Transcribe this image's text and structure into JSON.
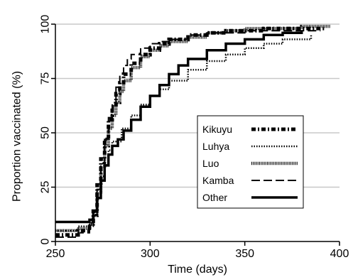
{
  "chart_data": {
    "type": "line",
    "title": "",
    "xlabel": "Time (days)",
    "ylabel": "Proportion vaccinated (%)",
    "xlim": [
      250,
      400
    ],
    "ylim": [
      0,
      100
    ],
    "xticks": [
      250,
      300,
      350,
      400
    ],
    "yticks": [
      0,
      25,
      50,
      75,
      100
    ],
    "ytick_labels": [
      "0",
      "25",
      "50",
      "75",
      "100"
    ],
    "xtick_labels": [
      "250",
      "300",
      "350",
      "400"
    ],
    "grid": "horizontal",
    "legend_position": "lower-right",
    "series": [
      {
        "name": "Kikuyu",
        "style": "dash-dot-heavy",
        "color": "#000000",
        "x": [
          250,
          262,
          268,
          270,
          272,
          274,
          276,
          278,
          280,
          282,
          284,
          286,
          290,
          295,
          300,
          305,
          310,
          320,
          330,
          340,
          350,
          360,
          370,
          380,
          390,
          393
        ],
        "y": [
          3,
          5,
          8,
          14,
          26,
          38,
          47,
          56,
          62,
          68,
          73,
          77,
          82,
          86,
          89,
          91,
          93,
          95,
          96,
          97,
          97,
          98,
          98,
          98,
          98,
          98
        ]
      },
      {
        "name": "Luhya",
        "style": "dotted",
        "color": "#000000",
        "x": [
          250,
          262,
          268,
          270,
          272,
          274,
          276,
          278,
          280,
          285,
          290,
          295,
          300,
          305,
          310,
          320,
          330,
          340,
          350,
          360,
          370,
          385
        ],
        "y": [
          5,
          7,
          9,
          12,
          20,
          30,
          36,
          42,
          46,
          52,
          58,
          63,
          67,
          70,
          74,
          79,
          83,
          86,
          89,
          91,
          93,
          95
        ]
      },
      {
        "name": "Luo",
        "style": "hatched",
        "color": "#000000",
        "x": [
          250,
          262,
          268,
          270,
          272,
          274,
          276,
          278,
          280,
          282,
          284,
          286,
          290,
          295,
          300,
          305,
          310,
          320,
          330,
          340,
          350,
          360,
          370,
          380,
          390,
          395
        ],
        "y": [
          5,
          6,
          8,
          12,
          22,
          34,
          44,
          52,
          58,
          64,
          69,
          74,
          80,
          85,
          88,
          90,
          92,
          94,
          96,
          97,
          98,
          98,
          98,
          99,
          99,
          99
        ]
      },
      {
        "name": "Kamba",
        "style": "dashed",
        "color": "#000000",
        "x": [
          250,
          262,
          268,
          270,
          272,
          274,
          276,
          278,
          280,
          282,
          284,
          286,
          288,
          290,
          295,
          300,
          305,
          310,
          320,
          330,
          340,
          350,
          360,
          370,
          380,
          390
        ],
        "y": [
          2,
          4,
          7,
          12,
          24,
          36,
          47,
          57,
          64,
          71,
          77,
          81,
          84,
          86,
          89,
          91,
          92,
          93,
          95,
          96,
          96,
          97,
          97,
          97,
          97,
          97
        ]
      },
      {
        "name": "Other",
        "style": "solid-thick",
        "color": "#000000",
        "x": [
          250,
          262,
          264,
          268,
          270,
          272,
          274,
          276,
          278,
          280,
          283,
          286,
          290,
          295,
          300,
          305,
          310,
          315,
          320,
          330,
          340,
          350,
          360,
          370,
          380
        ],
        "y": [
          9,
          9,
          9,
          10,
          14,
          20,
          28,
          35,
          40,
          44,
          47,
          51,
          56,
          62,
          67,
          72,
          77,
          81,
          84,
          88,
          91,
          93,
          95,
          96,
          97
        ]
      }
    ]
  }
}
